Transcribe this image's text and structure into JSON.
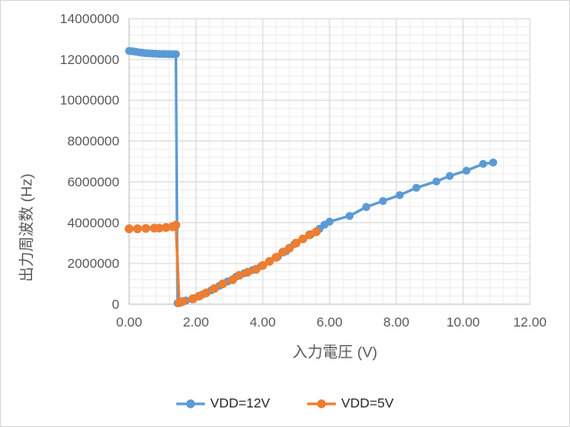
{
  "chart_data": {
    "type": "line",
    "title": "",
    "xlabel": "入力電圧 (V)",
    "ylabel": "出力周波数 (Hz)",
    "xlim": [
      0,
      12
    ],
    "ylim": [
      0,
      14000000
    ],
    "x_major_unit": 2,
    "x_minor_unit": 0.4,
    "y_major_unit": 2000000,
    "y_minor_unit": 400000,
    "x_tick_labels": [
      "0.00",
      "2.00",
      "4.00",
      "6.00",
      "8.00",
      "10.00",
      "12.00"
    ],
    "y_tick_labels": [
      "0",
      "2000000",
      "4000000",
      "6000000",
      "8000000",
      "10000000",
      "12000000",
      "14000000"
    ],
    "grid": true,
    "legend_position": "bottom",
    "series": [
      {
        "name": "VDD=12V",
        "color": "#5B9BD5",
        "marker": "circle",
        "marker_radius": 4.5,
        "x": [
          0,
          0.1,
          0.2,
          0.3,
          0.4,
          0.5,
          0.6,
          0.7,
          0.8,
          0.9,
          1.0,
          1.1,
          1.2,
          1.3,
          1.4,
          1.45,
          1.7,
          1.95,
          2.2,
          2.45,
          2.7,
          2.95,
          3.2,
          3.45,
          3.7,
          3.95,
          4.2,
          4.45,
          4.7,
          4.95,
          5.2,
          5.45,
          5.7,
          5.85,
          6.0,
          6.6,
          7.1,
          7.6,
          8.1,
          8.6,
          9.2,
          9.6,
          10.1,
          10.6,
          10.9
        ],
        "y": [
          12420000,
          12400000,
          12380000,
          12350000,
          12330000,
          12310000,
          12300000,
          12290000,
          12280000,
          12270000,
          12270000,
          12265000,
          12260000,
          12260000,
          12260000,
          50000,
          180000,
          300000,
          480000,
          680000,
          900000,
          1120000,
          1350000,
          1520000,
          1680000,
          1870000,
          2100000,
          2330000,
          2600000,
          2950000,
          3200000,
          3430000,
          3700000,
          3900000,
          4050000,
          4330000,
          4770000,
          5060000,
          5350000,
          5710000,
          6020000,
          6290000,
          6550000,
          6880000,
          6950000
        ]
      },
      {
        "name": "VDD=5V",
        "color": "#ED7D31",
        "marker": "circle",
        "marker_radius": 5,
        "x": [
          0,
          0.25,
          0.5,
          0.75,
          0.9,
          1.1,
          1.3,
          1.4,
          1.5,
          1.6,
          1.9,
          2.1,
          2.3,
          2.55,
          2.8,
          3.1,
          3.3,
          3.55,
          3.8,
          4.0,
          4.2,
          4.4,
          4.6,
          4.8,
          5.0,
          5.2,
          5.4,
          5.6
        ],
        "y": [
          3700000,
          3700000,
          3720000,
          3730000,
          3730000,
          3760000,
          3800000,
          3880000,
          80000,
          130000,
          260000,
          400000,
          550000,
          770000,
          1000000,
          1200000,
          1420000,
          1570000,
          1710000,
          1900000,
          2100000,
          2300000,
          2550000,
          2750000,
          3000000,
          3200000,
          3400000,
          3550000
        ]
      }
    ]
  },
  "styles": {
    "background": "#FFFFFF",
    "border_color": "#D9D9D9",
    "grid_major_color": "#D6D6D6",
    "grid_minor_color": "#EDEDED",
    "axis_line_color": "#BFBFBF",
    "tick_label_color": "#595959",
    "axis_title_color": "#595959",
    "legend_text_color": "#262626"
  }
}
